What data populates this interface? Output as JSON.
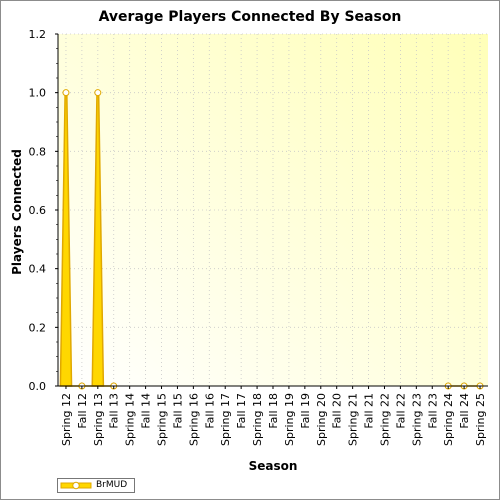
{
  "chart_data": {
    "type": "area",
    "title": "Average Players Connected By Season",
    "xlabel": "Season",
    "ylabel": "Players Connected",
    "ylim": [
      0,
      1.2
    ],
    "yticks": [
      "0.0",
      "0.2",
      "0.4",
      "0.6",
      "0.8",
      "1.0",
      "1.2"
    ],
    "grid": true,
    "legend_placement": "bottom-left",
    "categories": [
      "Spring 12",
      "Fall 12",
      "Spring 13",
      "Fall 13",
      "Spring 14",
      "Fall 14",
      "Spring 15",
      "Fall 15",
      "Spring 16",
      "Fall 16",
      "Spring 17",
      "Fall 17",
      "Spring 18",
      "Fall 18",
      "Spring 19",
      "Fall 19",
      "Spring 20",
      "Fall 20",
      "Spring 21",
      "Fall 21",
      "Spring 22",
      "Fall 22",
      "Spring 23",
      "Fall 23",
      "Spring 24",
      "Fall 24",
      "Spring 25"
    ],
    "series": [
      {
        "name": "BrMUD",
        "color": "#ffd700",
        "line_color": "#e0a800",
        "values": [
          1.0,
          0.0,
          1.0,
          0.0,
          null,
          null,
          null,
          null,
          null,
          null,
          null,
          null,
          null,
          null,
          null,
          null,
          null,
          null,
          null,
          null,
          null,
          null,
          null,
          null,
          0.0,
          0.0,
          0.0
        ]
      }
    ]
  }
}
